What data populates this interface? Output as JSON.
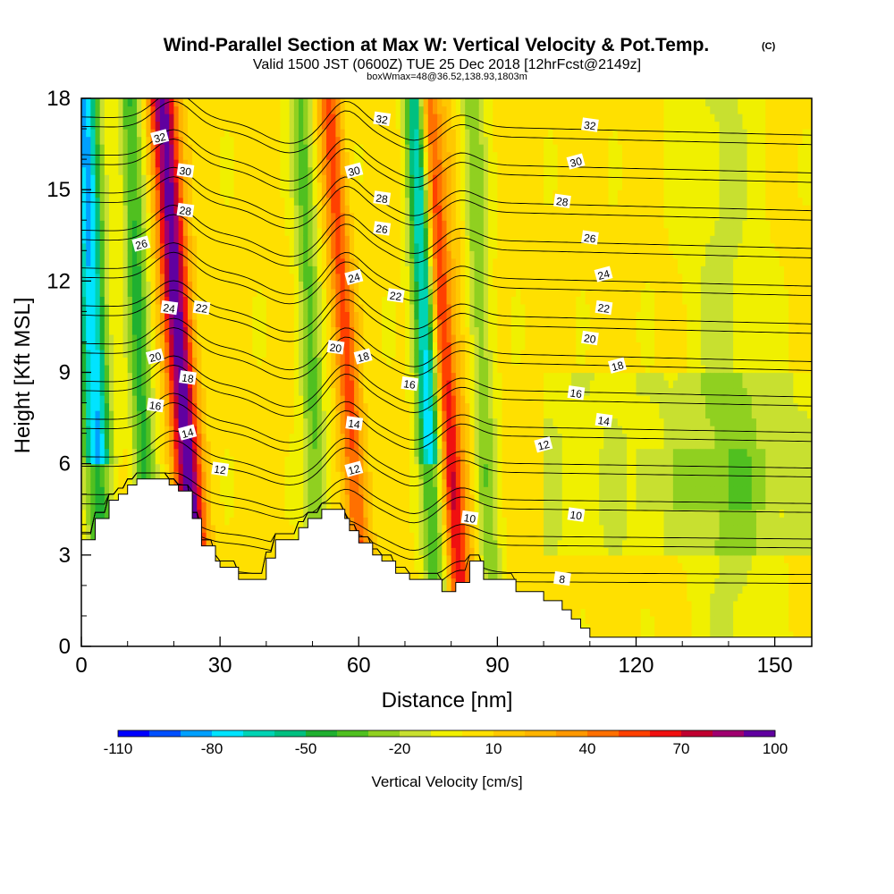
{
  "chart_data": {
    "type": "heatmap",
    "title": "Wind-Parallel Section at Max W: Vertical Velocity & Pot.Temp.",
    "title_mark": "(C)",
    "subtitle": "Valid 1500 JST (0600Z) TUE 25 Dec 2018 [12hrFcst@2149z]",
    "subtitle2": "boxWmax=48@36.52,138.93,1803m",
    "xlabel": "Distance [nm]",
    "ylabel": "Height [Kft MSL]",
    "xlim": [
      0,
      158
    ],
    "ylim": [
      0,
      18
    ],
    "x_ticks": [
      0,
      30,
      60,
      90,
      120,
      150
    ],
    "y_ticks": [
      0,
      3,
      6,
      9,
      12,
      15,
      18
    ],
    "colorbar": {
      "title": "Vertical Velocity [cm/s]",
      "tick_labels": [
        -110,
        -80,
        -50,
        -20,
        10,
        40,
        70,
        100
      ],
      "bounds": [
        -110,
        -100,
        -90,
        -80,
        -70,
        -60,
        -50,
        -40,
        -30,
        -20,
        -10,
        0,
        10,
        20,
        30,
        40,
        50,
        60,
        70,
        80,
        90,
        100
      ],
      "colors": [
        "#0000ff",
        "#0050ff",
        "#00a0ff",
        "#00e4ff",
        "#00d4b4",
        "#00c080",
        "#20b030",
        "#50c020",
        "#90d020",
        "#c8e030",
        "#f0f000",
        "#ffe000",
        "#ffc800",
        "#ffb400",
        "#ff9800",
        "#ff7000",
        "#ff4000",
        "#f01010",
        "#c00030",
        "#a00070",
        "#6000a0"
      ]
    },
    "vertical_velocity_updrafts": [
      {
        "x": 22,
        "width": 3,
        "peak": 95
      },
      {
        "x": 58,
        "width": 2.5,
        "peak": 50
      },
      {
        "x": 79,
        "width": 2.2,
        "peak": 62
      },
      {
        "x": 82,
        "width": 2.5,
        "peak": 15
      }
    ],
    "vertical_velocity_downdrafts": [
      {
        "x": 3,
        "width": 3,
        "peak": -85
      },
      {
        "x": 13,
        "width": 2.5,
        "peak": -45
      },
      {
        "x": 50,
        "width": 2.5,
        "peak": -35
      },
      {
        "x": 75,
        "width": 2.5,
        "peak": -80
      },
      {
        "x": 87,
        "width": 2.5,
        "peak": -30
      },
      {
        "x": 140,
        "width": 9,
        "peak": -15
      }
    ],
    "potential_temperature_levels": [
      8,
      10,
      12,
      14,
      16,
      18,
      20,
      22,
      24,
      26,
      28,
      30,
      32
    ],
    "potential_temperature_labels": [
      {
        "text": "32",
        "x": 17,
        "y": 16.7
      },
      {
        "text": "30",
        "x": 22.5,
        "y": 15.6
      },
      {
        "text": "28",
        "x": 22.5,
        "y": 14.3
      },
      {
        "text": "26",
        "x": 13,
        "y": 13.2
      },
      {
        "text": "24",
        "x": 19,
        "y": 11.1
      },
      {
        "text": "22",
        "x": 26,
        "y": 11.1
      },
      {
        "text": "20",
        "x": 16,
        "y": 9.5
      },
      {
        "text": "18",
        "x": 23,
        "y": 8.8
      },
      {
        "text": "16",
        "x": 16,
        "y": 7.9
      },
      {
        "text": "14",
        "x": 23,
        "y": 7.0
      },
      {
        "text": "12",
        "x": 30,
        "y": 5.8
      },
      {
        "text": "32",
        "x": 65,
        "y": 17.3
      },
      {
        "text": "30",
        "x": 59,
        "y": 15.6
      },
      {
        "text": "28",
        "x": 65,
        "y": 14.7
      },
      {
        "text": "26",
        "x": 65,
        "y": 13.7
      },
      {
        "text": "24",
        "x": 59,
        "y": 12.1
      },
      {
        "text": "22",
        "x": 68,
        "y": 11.5
      },
      {
        "text": "20",
        "x": 55,
        "y": 9.8
      },
      {
        "text": "18",
        "x": 61,
        "y": 9.5
      },
      {
        "text": "16",
        "x": 71,
        "y": 8.6
      },
      {
        "text": "14",
        "x": 59,
        "y": 7.3
      },
      {
        "text": "12",
        "x": 59,
        "y": 5.8
      },
      {
        "text": "10",
        "x": 84,
        "y": 4.2
      },
      {
        "text": "32",
        "x": 110,
        "y": 17.1
      },
      {
        "text": "30",
        "x": 107,
        "y": 15.9
      },
      {
        "text": "28",
        "x": 104,
        "y": 14.6
      },
      {
        "text": "26",
        "x": 110,
        "y": 13.4
      },
      {
        "text": "24",
        "x": 113,
        "y": 12.2
      },
      {
        "text": "22",
        "x": 113,
        "y": 11.1
      },
      {
        "text": "20",
        "x": 110,
        "y": 10.1
      },
      {
        "text": "18",
        "x": 116,
        "y": 9.2
      },
      {
        "text": "16",
        "x": 107,
        "y": 8.3
      },
      {
        "text": "14",
        "x": 113,
        "y": 7.4
      },
      {
        "text": "12",
        "x": 100,
        "y": 6.6
      },
      {
        "text": "10",
        "x": 107,
        "y": 4.3
      },
      {
        "text": "8",
        "x": 104,
        "y": 2.2
      }
    ],
    "terrain_profile": {
      "x": [
        0,
        3,
        3,
        6,
        6,
        8,
        8,
        10,
        10,
        12,
        12,
        13,
        13,
        19,
        19,
        21,
        21,
        24,
        24,
        26,
        26,
        29,
        29,
        30,
        30,
        34,
        34,
        36,
        36,
        40,
        40,
        42,
        42,
        47,
        47,
        49,
        49,
        52,
        52,
        57,
        57,
        58,
        58,
        60,
        60,
        63,
        63,
        65,
        65,
        68,
        68,
        71,
        71,
        73,
        73,
        78,
        78,
        81,
        81,
        84,
        84,
        87,
        87,
        94,
        94,
        100,
        100,
        104,
        104,
        106,
        106,
        108,
        108,
        110,
        110,
        112,
        112,
        114,
        114,
        158
      ],
      "y": [
        3.5,
        3.5,
        4.2,
        4.2,
        4.8,
        4.8,
        5.0,
        5.0,
        5.3,
        5.3,
        5.5,
        5.5,
        5.5,
        5.5,
        5.3,
        5.3,
        5.1,
        5.1,
        4.2,
        4.2,
        3.3,
        3.3,
        2.8,
        2.8,
        2.6,
        2.6,
        2.2,
        2.2,
        2.2,
        2.2,
        2.9,
        2.9,
        3.5,
        3.5,
        3.9,
        3.9,
        4.2,
        4.2,
        4.5,
        4.5,
        4.2,
        4.2,
        3.8,
        3.8,
        3.4,
        3.4,
        3.0,
        3.0,
        2.8,
        2.8,
        2.4,
        2.4,
        2.2,
        2.2,
        2.2,
        2.2,
        1.8,
        1.8,
        2.1,
        2.1,
        2.8,
        2.8,
        2.2,
        2.2,
        1.8,
        1.8,
        1.5,
        1.5,
        1.2,
        1.2,
        0.9,
        0.9,
        0.6,
        0.6,
        0.3,
        0.3,
        0.3,
        0.3,
        0.3,
        0.3
      ]
    }
  }
}
